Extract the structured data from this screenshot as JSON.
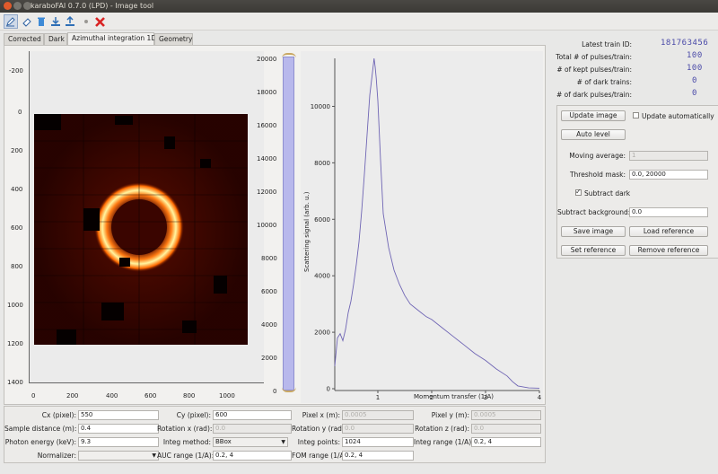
{
  "window": {
    "title": "karaboFAI 0.7.0 (LPD) - Image tool"
  },
  "toolbar": {
    "icons": [
      "pencil-icon",
      "eraser-icon",
      "trash-icon",
      "download-icon",
      "upload-icon",
      "dot-icon",
      "close-x-icon"
    ]
  },
  "tabs": [
    {
      "label": "Corrected"
    },
    {
      "label": "Dark"
    },
    {
      "label": "Azimuthal integration 1D"
    },
    {
      "label": "Geometry"
    }
  ],
  "image_plot": {
    "x_ticks": [
      "0",
      "200",
      "400",
      "600",
      "800",
      "1000"
    ],
    "y_ticks": [
      "-200",
      "0",
      "200",
      "400",
      "600",
      "800",
      "1000",
      "1200",
      "1400"
    ]
  },
  "histogram": {
    "ticks": [
      "20000",
      "18000",
      "16000",
      "14000",
      "12000",
      "10000",
      "8000",
      "6000",
      "4000",
      "2000",
      "0"
    ],
    "color": "#b8b8ec"
  },
  "chart_data": {
    "type": "line",
    "title": "",
    "xlabel": "Momentum transfer (1/A)",
    "ylabel": "Scattering signal (arb. u.)",
    "xlim": [
      0.2,
      4
    ],
    "ylim": [
      0,
      11700
    ],
    "x_ticks": [
      "1",
      "2",
      "3",
      "4"
    ],
    "y_ticks": [
      "0",
      "2000",
      "4000",
      "6000",
      "8000",
      "10000"
    ],
    "line_color": "#6f65b4",
    "x": [
      0.2,
      0.25,
      0.3,
      0.35,
      0.4,
      0.45,
      0.5,
      0.55,
      0.6,
      0.65,
      0.7,
      0.75,
      0.8,
      0.85,
      0.9,
      0.93,
      0.95,
      0.97,
      1.0,
      1.05,
      1.1,
      1.2,
      1.3,
      1.4,
      1.5,
      1.6,
      1.7,
      1.8,
      1.9,
      2.0,
      2.2,
      2.4,
      2.6,
      2.8,
      3.0,
      3.2,
      3.4,
      3.5,
      3.6,
      3.8,
      4.0
    ],
    "y": [
      800,
      1800,
      1950,
      1700,
      2100,
      2700,
      3100,
      3700,
      4400,
      5200,
      6300,
      7600,
      9000,
      10400,
      11200,
      11700,
      11400,
      11000,
      10200,
      8100,
      6200,
      5000,
      4200,
      3700,
      3300,
      3000,
      2850,
      2700,
      2550,
      2450,
      2150,
      1850,
      1550,
      1250,
      1000,
      700,
      450,
      250,
      100,
      30,
      20
    ]
  },
  "right_panel": {
    "latest_train_id_label": "Latest train ID:",
    "latest_train_id": "181763456",
    "total_pulses_label": "Total # of pulses/train:",
    "total_pulses": "100",
    "kept_pulses_label": "# of kept pulses/train:",
    "kept_pulses": "100",
    "dark_trains_label": "# of dark trains:",
    "dark_trains": "0",
    "dark_pulses_label": "# of dark pulses/train:",
    "dark_pulses": "0"
  },
  "controls": {
    "update_image": "Update image",
    "update_automatically": "Update automatically",
    "auto_level": "Auto level",
    "moving_average_label": "Moving average:",
    "moving_average_value": "1",
    "threshold_mask_label": "Threshold mask:",
    "threshold_mask_value": "0.0, 20000",
    "subtract_dark": "Subtract dark",
    "subtract_background_label": "Subtract background:",
    "subtract_background_value": "0.0",
    "save_image": "Save image",
    "load_reference": "Load reference",
    "set_reference": "Set reference",
    "remove_reference": "Remove reference"
  },
  "params": {
    "cx_label": "Cx (pixel):",
    "cx": "550",
    "cy_label": "Cy (pixel):",
    "cy": "600",
    "pixel_x_label": "Pixel x (m):",
    "pixel_x": "0.0005",
    "pixel_y_label": "Pixel y (m):",
    "pixel_y": "0.0005",
    "sample_distance_label": "Sample distance (m):",
    "sample_distance": "0.4",
    "rotation_x_label": "Rotation x (rad):",
    "rotation_x": "0.0",
    "rotation_y_label": "Rotation y (rad):",
    "rotation_y": "0.0",
    "rotation_z_label": "Rotation z (rad):",
    "rotation_z": "0.0",
    "photon_energy_label": "Photon energy (keV):",
    "photon_energy": "9.3",
    "integ_method_label": "Integ method:",
    "integ_method": "BBox",
    "integ_points_label": "Integ points:",
    "integ_points": "1024",
    "integ_range_label": "Integ range (1/A):",
    "integ_range": "0.2, 4",
    "normalizer_label": "Normalizer:",
    "normalizer": "",
    "auc_range_label": "AUC range (1/A):",
    "auc_range": "0.2, 4",
    "fom_range_label": "FOM range (1/A):",
    "fom_range": "0.2, 4"
  }
}
